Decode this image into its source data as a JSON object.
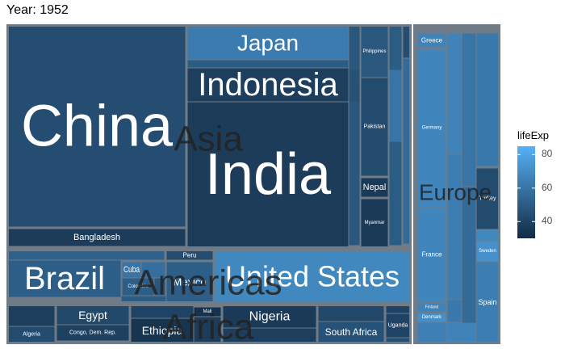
{
  "title": "Year: 1952",
  "colors": {
    "frame": "#6f7b87",
    "bg": "#ffffff",
    "tile_low": "#132b43",
    "tile_high": "#56b1f7",
    "group_label": "#222222",
    "tile_label": "#ffffff"
  },
  "chart_data": {
    "type": "treemap",
    "title": "Year: 1952",
    "size_variable": "pop",
    "fill_variable": "lifeExp",
    "legend": {
      "title": "lifeExp",
      "ticks": [
        80,
        60,
        40
      ],
      "range": [
        30,
        85
      ],
      "placement": "right"
    },
    "groups": [
      {
        "name": "Asia",
        "countries": [
          {
            "name": "China",
            "lifeExp": 44
          },
          {
            "name": "India",
            "lifeExp": 37
          },
          {
            "name": "Japan",
            "lifeExp": 63
          },
          {
            "name": "Indonesia",
            "lifeExp": 38
          },
          {
            "name": "Bangladesh",
            "lifeExp": 37
          },
          {
            "name": "Pakistan",
            "lifeExp": 43
          },
          {
            "name": "Philippines",
            "lifeExp": 48
          },
          {
            "name": "Nepal",
            "lifeExp": 36
          },
          {
            "name": "Myanmar",
            "lifeExp": 36
          }
        ]
      },
      {
        "name": "Europe",
        "countries": [
          {
            "name": "Germany",
            "lifeExp": 67
          },
          {
            "name": "France",
            "lifeExp": 67
          },
          {
            "name": "Greece",
            "lifeExp": 66
          },
          {
            "name": "Spain",
            "lifeExp": 64
          },
          {
            "name": "Sweden",
            "lifeExp": 72
          },
          {
            "name": "Turkey",
            "lifeExp": 43
          },
          {
            "name": "Finland",
            "lifeExp": 66
          },
          {
            "name": "Denmark",
            "lifeExp": 71
          }
        ]
      },
      {
        "name": "Americas",
        "countries": [
          {
            "name": "United States",
            "lifeExp": 68
          },
          {
            "name": "Brazil",
            "lifeExp": 51
          },
          {
            "name": "Mexico",
            "lifeExp": 51
          },
          {
            "name": "Cuba",
            "lifeExp": 60
          },
          {
            "name": "Colombia",
            "lifeExp": 51
          },
          {
            "name": "Peru",
            "lifeExp": 44
          }
        ]
      },
      {
        "name": "Africa",
        "countries": [
          {
            "name": "Nigeria",
            "lifeExp": 36
          },
          {
            "name": "Egypt",
            "lifeExp": 42
          },
          {
            "name": "Ethiopia",
            "lifeExp": 34
          },
          {
            "name": "South Africa",
            "lifeExp": 46
          },
          {
            "name": "Congo, Dem. Rep.",
            "lifeExp": 39
          },
          {
            "name": "Algeria",
            "lifeExp": 43
          },
          {
            "name": "Uganda",
            "lifeExp": 40
          },
          {
            "name": "Mali",
            "lifeExp": 33
          }
        ]
      }
    ]
  }
}
